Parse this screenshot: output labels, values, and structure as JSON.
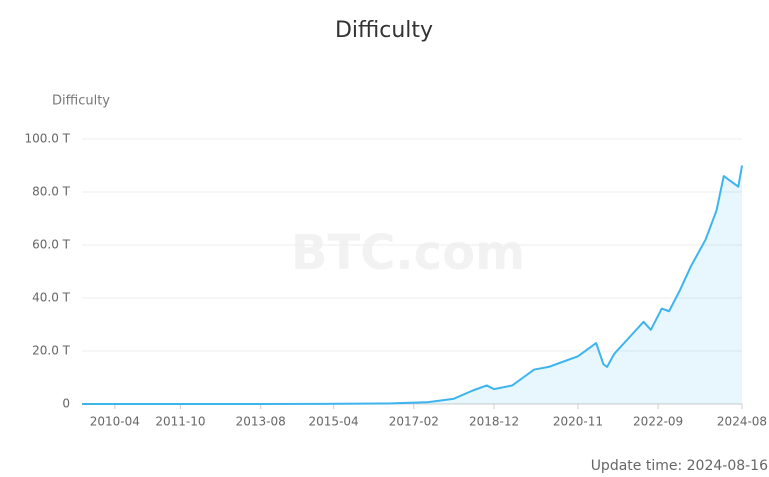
{
  "chart_data": {
    "type": "area",
    "title": "Difficulty",
    "y_label": "Difficulty",
    "watermark": "BTC.com",
    "update_time": "Update time: 2024-08-16",
    "x": [
      "2009-07",
      "2012-01",
      "2015-01",
      "2016-07",
      "2017-06",
      "2018-01",
      "2018-06",
      "2018-10",
      "2018-12",
      "2019-05",
      "2019-08",
      "2019-11",
      "2020-03",
      "2020-05",
      "2020-11",
      "2021-04",
      "2021-06",
      "2021-07",
      "2021-09",
      "2022-01",
      "2022-05",
      "2022-07",
      "2022-10",
      "2022-12",
      "2023-03",
      "2023-06",
      "2023-10",
      "2024-01",
      "2024-03",
      "2024-05",
      "2024-07",
      "2024-08"
    ],
    "series": [
      {
        "name": "Difficulty",
        "color": "#3eb4ee",
        "values": [
          0,
          0,
          0.04,
          0.2,
          0.7,
          2,
          5,
          7,
          5.6,
          7,
          10,
          13,
          14,
          15,
          18,
          23,
          15,
          14,
          19,
          25,
          31,
          28,
          36,
          35,
          43,
          52,
          62,
          73,
          86,
          84,
          82,
          90
        ]
      }
    ],
    "xlim": [
      "2009-07",
      "2024-08"
    ],
    "xticks": [
      "2010-04",
      "2011-10",
      "2013-08",
      "2015-04",
      "2017-02",
      "2018-12",
      "2020-11",
      "2022-09",
      "2024-08"
    ],
    "ylim": [
      0,
      100
    ],
    "yticks": [
      0,
      {
        "value": 20,
        "label": "20.0 T"
      },
      {
        "value": 40,
        "label": "40.0 T"
      },
      {
        "value": 60,
        "label": "60.0 T"
      },
      {
        "value": 80,
        "label": "80.0 T"
      },
      {
        "value": 100,
        "label": "100.0 T"
      }
    ],
    "grid": true
  }
}
